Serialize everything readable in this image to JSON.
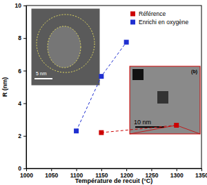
{
  "chart_data": {
    "type": "line",
    "x_label": "Température de recuit (°C)",
    "y_label": "R (nm)",
    "xlim": [
      1000,
      1350
    ],
    "xticks": [
      1000,
      1050,
      1100,
      1150,
      1200,
      1250,
      1300,
      1350
    ],
    "ylim": [
      0,
      10
    ],
    "yticks": [
      0,
      2,
      4,
      6,
      8,
      10
    ],
    "grid": false,
    "legend": "upper right",
    "series": [
      {
        "name": "Référence",
        "color": "#cc0000",
        "marker": "square",
        "line_style": "dashed",
        "x": [
          1150,
          1300
        ],
        "values": [
          2.2,
          2.65
        ]
      },
      {
        "name": "Enrichi en oxygène",
        "color": "#1f2fd0",
        "marker": "square",
        "line_style": "dashed",
        "x": [
          1100,
          1150,
          1200
        ],
        "values": [
          2.3,
          5.65,
          7.75
        ]
      }
    ],
    "annotations": [
      "5 nm",
      "10 nm",
      "(b)"
    ]
  }
}
